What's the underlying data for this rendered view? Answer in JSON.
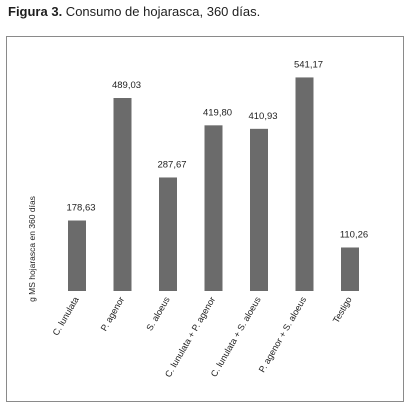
{
  "caption": {
    "label": "Figura 3.",
    "text": " Consumo de hojarasca, 360 días."
  },
  "chart_data": {
    "type": "bar",
    "categories": [
      "C. lunulata",
      "P. agenor",
      "S. aloeus",
      "C. lunulata + P. agenor",
      "C. lunulata + S. aloeus",
      "P. agenor + S. aloeus",
      "Testigo"
    ],
    "values": [
      178.63,
      489.03,
      287.67,
      419.8,
      410.93,
      541.17,
      110.26
    ],
    "value_labels": [
      "178,63",
      "489,03",
      "287,67",
      "419,80",
      "410,93",
      "541,17",
      "110,26"
    ],
    "ylabel": "g MS hojarasca en 360 días",
    "ylim": [
      0,
      560
    ],
    "bar_color": "#6b6b6b",
    "grid": false,
    "legend": "none"
  }
}
